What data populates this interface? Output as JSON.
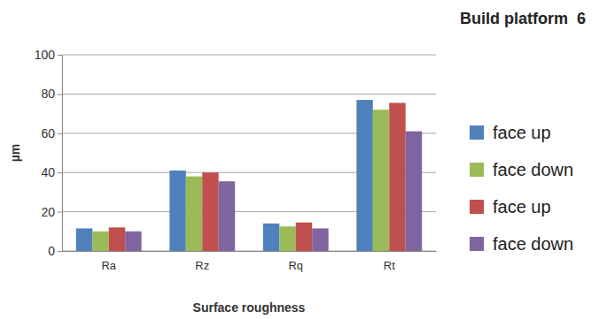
{
  "chart_data": {
    "type": "bar",
    "title": "Build platform  6",
    "x_label": "Surface roughness",
    "y_label": "µm",
    "categories": [
      "Ra",
      "Rz",
      "Rq",
      "Rt"
    ],
    "series": [
      {
        "name": "face up",
        "color": "#4f81bd",
        "values": [
          11.5,
          41,
          14,
          77
        ]
      },
      {
        "name": "face down",
        "color": "#9bbb59",
        "values": [
          10,
          38,
          12.5,
          72
        ]
      },
      {
        "name": "face up",
        "color": "#c0504d",
        "values": [
          12,
          40,
          14.5,
          75.5
        ]
      },
      {
        "name": "face down",
        "color": "#8064a2",
        "values": [
          10,
          35.5,
          11.5,
          61
        ]
      }
    ],
    "ylim": [
      0,
      100
    ],
    "yticks": [
      0,
      20,
      40,
      60,
      80,
      100
    ],
    "grid": true,
    "legend": "right"
  }
}
